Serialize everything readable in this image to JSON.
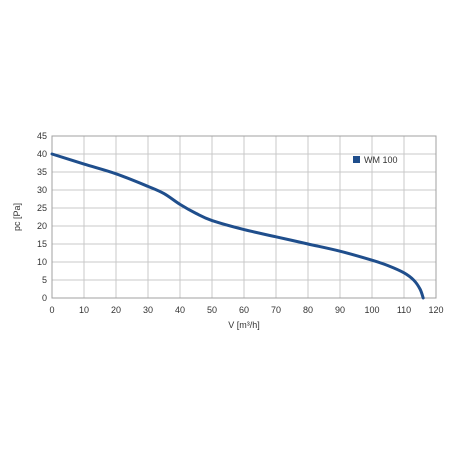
{
  "chart_data": {
    "type": "line",
    "xlabel": "V [m³/h]",
    "ylabel": "pc [Pa]",
    "xlim": [
      0,
      120
    ],
    "ylim": [
      0,
      45
    ],
    "xticks": [
      0,
      10,
      20,
      30,
      40,
      50,
      60,
      70,
      80,
      90,
      100,
      110,
      120
    ],
    "yticks": [
      0,
      5,
      10,
      15,
      20,
      25,
      30,
      35,
      40,
      45
    ],
    "grid": true,
    "legend_position": "top-right",
    "series": [
      {
        "name": "WM 100",
        "color": "#1f4e8c",
        "x": [
          0,
          10,
          20,
          30,
          35,
          40,
          45,
          50,
          60,
          70,
          80,
          90,
          100,
          105,
          110,
          113,
          115,
          116
        ],
        "y": [
          40,
          37.2,
          34.5,
          31,
          29,
          26,
          23.5,
          21.5,
          19,
          17,
          15,
          13,
          10.5,
          9,
          7,
          5,
          2.5,
          0
        ]
      }
    ]
  }
}
